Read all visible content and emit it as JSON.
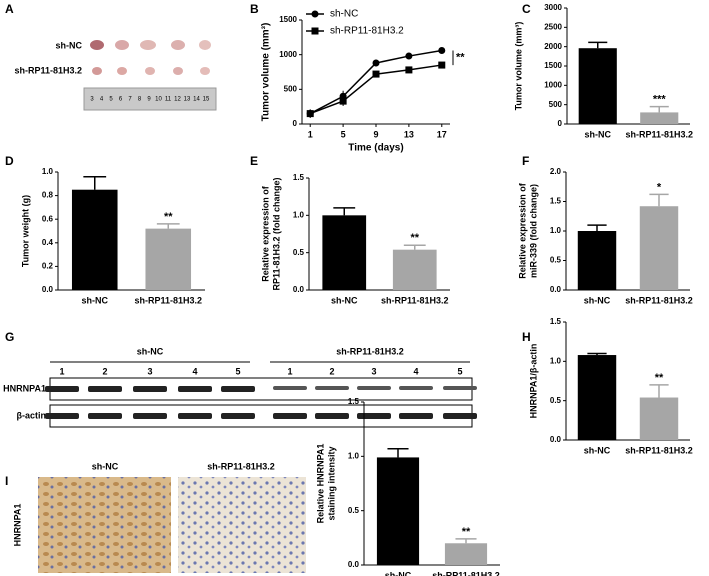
{
  "chart_data": [
    {
      "type": "line",
      "label": "B",
      "xlabel": "Time (days)",
      "ylabel": "Tumor volume (mm³)",
      "x": [
        1,
        5,
        9,
        13,
        17
      ],
      "xlim": [
        0,
        18
      ],
      "xticks": [
        1,
        5,
        9,
        13,
        17
      ],
      "ylim": [
        0,
        1500
      ],
      "yticks": [
        0,
        500,
        1000,
        1500
      ],
      "legend": "upper left",
      "annotation": "**",
      "series": [
        {
          "name": "sh-NC",
          "color": "#000000",
          "marker": "circle",
          "values": [
            150,
            400,
            880,
            980,
            1060
          ],
          "errors": [
            60,
            80,
            50,
            40,
            40
          ]
        },
        {
          "name": "sh-RP11-81H3.2",
          "color": "#000000",
          "marker": "square",
          "values": [
            150,
            330,
            720,
            780,
            850
          ],
          "errors": [
            60,
            70,
            40,
            30,
            30
          ]
        }
      ]
    },
    {
      "type": "bar",
      "label": "C",
      "ylabel": [
        "Tumor volume (mm³)"
      ],
      "categories": [
        "sh-NC",
        "sh-RP11-81H3.2"
      ],
      "values": [
        1960,
        300
      ],
      "errors": [
        150,
        150
      ],
      "colors": [
        "#000000",
        "#a6a6a6"
      ],
      "ylim": [
        0,
        3000
      ],
      "yticks": [
        0,
        500,
        1000,
        1500,
        2000,
        2500,
        3000
      ],
      "annotation": "***"
    },
    {
      "type": "bar",
      "label": "D",
      "ylabel": [
        "Tumor weight (g)"
      ],
      "categories": [
        "sh-NC",
        "sh-RP11-81H3.2"
      ],
      "values": [
        0.85,
        0.52
      ],
      "errors": [
        0.11,
        0.04
      ],
      "colors": [
        "#000000",
        "#a6a6a6"
      ],
      "ylim": [
        0,
        1
      ],
      "yticks": [
        {
          "value": 0,
          "label": "0.0"
        },
        0.2,
        0.4,
        0.6,
        0.8,
        {
          "value": 1,
          "label": "1.0"
        }
      ],
      "annotation": "**"
    },
    {
      "type": "bar",
      "label": "E",
      "ylabel": [
        "Relative expression of",
        "RP11-81H3.2 (fold change)"
      ],
      "categories": [
        "sh-NC",
        "sh-RP11-81H3.2"
      ],
      "values": [
        1.0,
        0.54
      ],
      "errors": [
        0.1,
        0.06
      ],
      "colors": [
        "#000000",
        "#a6a6a6"
      ],
      "ylim": [
        0,
        1.5
      ],
      "yticks": [
        {
          "value": 0,
          "label": "0.0"
        },
        0.5,
        {
          "value": 1,
          "label": "1.0"
        },
        1.5
      ],
      "annotation": "**"
    },
    {
      "type": "bar",
      "label": "F",
      "ylabel": [
        "Relative expression of",
        "miR-339 (fold change)"
      ],
      "categories": [
        "sh-NC",
        "sh-RP11-81H3.2"
      ],
      "values": [
        1.0,
        1.42
      ],
      "errors": [
        0.1,
        0.2
      ],
      "colors": [
        "#000000",
        "#a6a6a6"
      ],
      "ylim": [
        0,
        2
      ],
      "yticks": [
        {
          "value": 0,
          "label": "0.0"
        },
        0.5,
        {
          "value": 1,
          "label": "1.0"
        },
        1.5,
        {
          "value": 2,
          "label": "2.0"
        }
      ],
      "annotation": "*"
    },
    {
      "type": "bar",
      "label": "H",
      "ylabel": [
        "HNRNPA1/β-actin"
      ],
      "categories": [
        "sh-NC",
        "sh-RP11-81H3.2"
      ],
      "values": [
        1.08,
        0.54
      ],
      "errors": [
        0.02,
        0.16
      ],
      "colors": [
        "#000000",
        "#a6a6a6"
      ],
      "ylim": [
        0,
        1.5
      ],
      "yticks": [
        {
          "value": 0,
          "label": "0.0"
        },
        0.5,
        {
          "value": 1,
          "label": "1.0"
        },
        1.5
      ],
      "annotation": "**"
    },
    {
      "type": "bar",
      "label": "I",
      "ylabel": [
        "Relative HNRNPA1",
        "staining intensity"
      ],
      "categories": [
        "sh-NC",
        "sh-RP11-81H3.2"
      ],
      "values": [
        0.99,
        0.2
      ],
      "errors": [
        0.08,
        0.04
      ],
      "colors": [
        "#000000",
        "#a6a6a6"
      ],
      "ylim": [
        0,
        1.5
      ],
      "yticks": [
        {
          "value": 0,
          "label": "0.0"
        },
        0.5,
        {
          "value": 1,
          "label": "1.0"
        },
        1.5
      ],
      "annotation": "**"
    }
  ],
  "panels": {
    "A": {
      "label": "A",
      "rows": [
        "sh-NC",
        "sh-RP11-81H3.2"
      ],
      "ruler": [
        3,
        4,
        5,
        6,
        7,
        8,
        9,
        10,
        11,
        12,
        13,
        14,
        15
      ]
    },
    "G": {
      "label": "G",
      "groups": [
        "sh-NC",
        "sh-RP11-81H3.2"
      ],
      "lanes": [
        "1",
        "2",
        "3",
        "4",
        "5",
        "1",
        "2",
        "3",
        "4",
        "5"
      ],
      "blots": [
        "HNRNPA1",
        "β-actin"
      ]
    },
    "I": {
      "groups": [
        "sh-NC",
        "sh-RP11-81H3.2"
      ],
      "stain": "HNRNPA1"
    }
  }
}
